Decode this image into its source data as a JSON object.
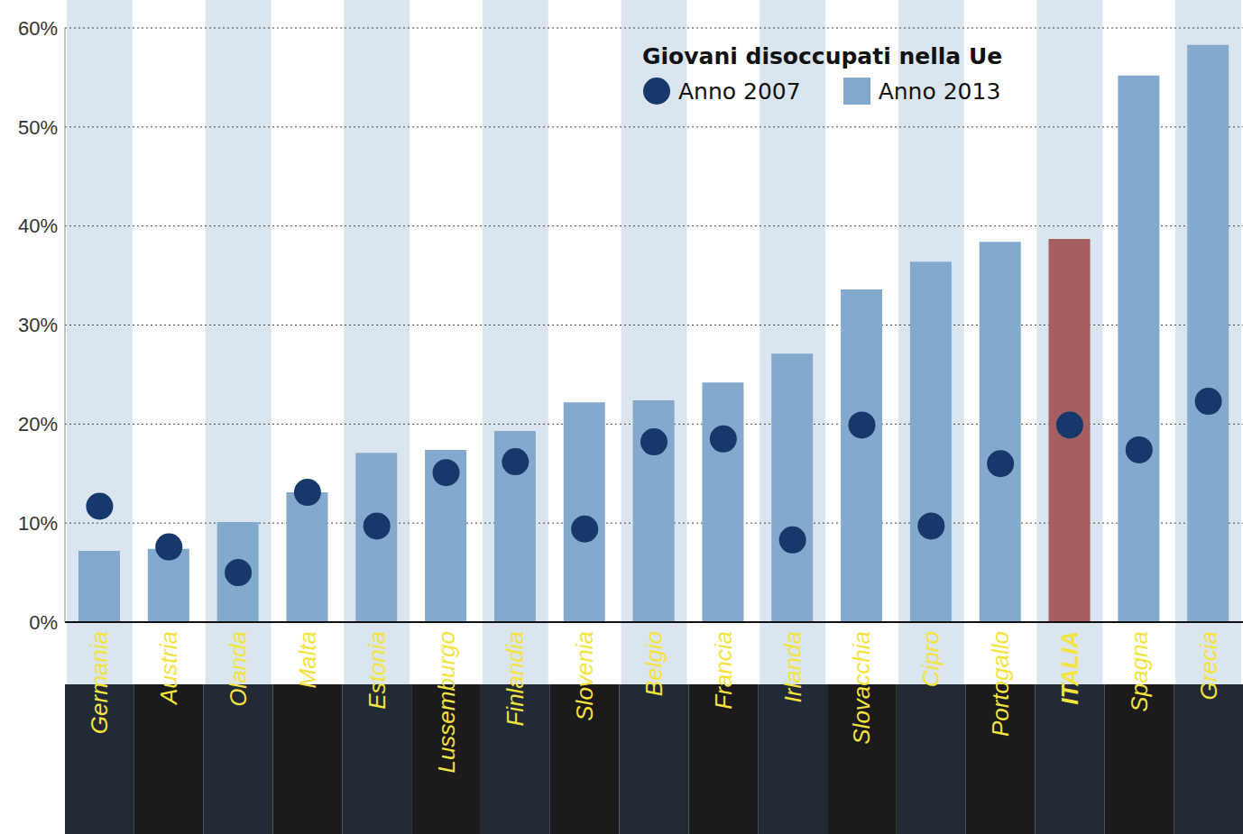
{
  "chart_data": {
    "type": "bar",
    "title": "Giovani disoccupati nella Ue",
    "categories": [
      "Germania",
      "Austria",
      "Olanda",
      "Malta",
      "Estonia",
      "Lussemburgo",
      "Finlandia",
      "Slovenia",
      "Belgio",
      "Francia",
      "Irlanda",
      "Slovacchia",
      "Cipro",
      "Portogallo",
      "ITALIA",
      "Spagna",
      "Grecia"
    ],
    "series": [
      {
        "name": "Anno 2007",
        "type": "scatter",
        "marker": "circle",
        "color": "#16386b",
        "values": [
          11.7,
          7.6,
          5.0,
          13.1,
          9.7,
          15.1,
          16.2,
          9.4,
          18.2,
          18.5,
          8.3,
          19.9,
          9.7,
          16.0,
          19.9,
          17.4,
          22.3
        ]
      },
      {
        "name": "Anno 2013",
        "type": "bar",
        "color": "#83a9cd",
        "colors": [
          "#83a9cd",
          "#83a9cd",
          "#83a9cd",
          "#83a9cd",
          "#83a9cd",
          "#83a9cd",
          "#83a9cd",
          "#83a9cd",
          "#83a9cd",
          "#83a9cd",
          "#83a9cd",
          "#83a9cd",
          "#83a9cd",
          "#83a9cd",
          "#a65f60",
          "#83a9cd",
          "#83a9cd"
        ],
        "values": [
          7.2,
          7.4,
          10.1,
          13.1,
          17.1,
          17.4,
          19.3,
          22.2,
          22.4,
          24.2,
          27.1,
          33.6,
          36.4,
          38.4,
          38.7,
          55.2,
          58.3
        ]
      }
    ],
    "ylim": [
      0,
      60
    ],
    "yticks": [
      {
        "value": 0,
        "label": "0%"
      },
      {
        "value": 10,
        "label": "10%"
      },
      {
        "value": 20,
        "label": "20%"
      },
      {
        "value": 30,
        "label": "30%"
      },
      {
        "value": 40,
        "label": "40%"
      },
      {
        "value": 50,
        "label": "50%"
      },
      {
        "value": 60,
        "label": "60%"
      }
    ],
    "grid": true,
    "legend": "top-right"
  }
}
